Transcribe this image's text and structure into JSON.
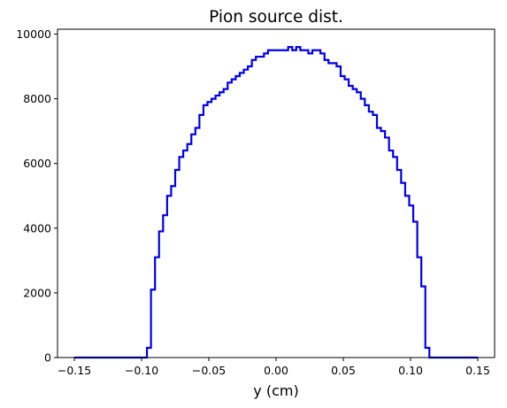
{
  "chart_data": {
    "type": "histogram",
    "title": "Pion source dist.",
    "xlabel": "y (cm)",
    "ylabel": "",
    "xlim": [
      -0.1625,
      0.1625
    ],
    "ylim": [
      0,
      10150
    ],
    "xticks": [
      -0.15,
      -0.1,
      -0.05,
      0.0,
      0.05,
      0.1,
      0.15
    ],
    "xtick_labels": [
      "−0.15",
      "−0.10",
      "−0.05",
      "0.00",
      "0.05",
      "0.10",
      "0.15"
    ],
    "yticks": [
      0,
      2000,
      4000,
      6000,
      8000,
      10000
    ],
    "ytick_labels": [
      "0",
      "2000",
      "4000",
      "6000",
      "8000",
      "10000"
    ],
    "grid": false,
    "line_color": "#0000ee",
    "bin_edges_start": -0.15,
    "bin_width": 0.003,
    "counts": [
      0,
      0,
      0,
      0,
      0,
      0,
      0,
      0,
      0,
      0,
      0,
      0,
      0,
      0,
      0,
      0,
      0,
      0,
      300,
      2100,
      3100,
      3900,
      4400,
      5000,
      5300,
      5800,
      6200,
      6400,
      6600,
      6900,
      7100,
      7500,
      7800,
      7900,
      8000,
      8100,
      8200,
      8300,
      8500,
      8600,
      8700,
      8800,
      8900,
      9000,
      9200,
      9300,
      9300,
      9400,
      9500,
      9500,
      9500,
      9500,
      9500,
      9600,
      9500,
      9600,
      9500,
      9500,
      9400,
      9500,
      9500,
      9400,
      9200,
      9100,
      9100,
      9000,
      8700,
      8600,
      8400,
      8300,
      8200,
      8000,
      7800,
      7600,
      7500,
      7100,
      7000,
      6800,
      6400,
      6200,
      5800,
      5400,
      5000,
      4700,
      4200,
      3100,
      2200,
      300,
      0,
      0,
      0,
      0,
      0,
      0,
      0,
      0,
      0,
      0,
      0,
      0
    ]
  }
}
